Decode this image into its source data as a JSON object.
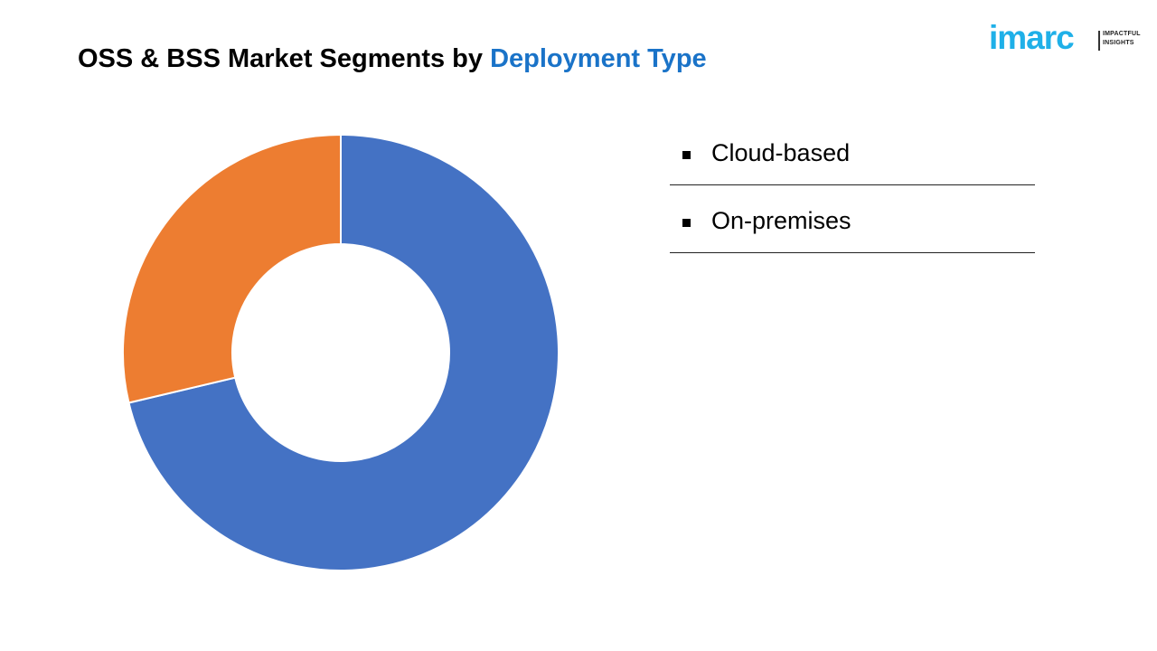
{
  "header": {
    "title_prefix": "OSS & BSS Market Segments by ",
    "title_accent": "Deployment Type"
  },
  "logo": {
    "wordmark": "imarc",
    "tagline_1": "IMPACTFUL",
    "tagline_2": "INSIGHTS"
  },
  "chart_data": {
    "type": "pie",
    "variant": "donut",
    "categories": [
      "Cloud-based",
      "On-premises"
    ],
    "values": [
      71.3,
      28.7
    ],
    "colors": [
      "#4472c4",
      "#ed7d31"
    ],
    "start_angle_deg": 0,
    "direction": "clockwise",
    "legend_position": "right",
    "data_labels": false
  }
}
